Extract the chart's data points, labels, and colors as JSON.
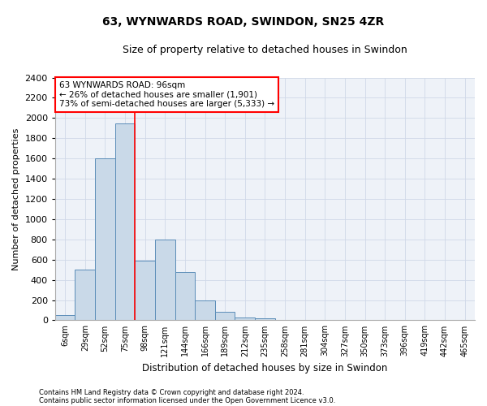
{
  "title_line1": "63, WYNWARDS ROAD, SWINDON, SN25 4ZR",
  "title_line2": "Size of property relative to detached houses in Swindon",
  "xlabel": "Distribution of detached houses by size in Swindon",
  "ylabel": "Number of detached properties",
  "footer_line1": "Contains HM Land Registry data © Crown copyright and database right 2024.",
  "footer_line2": "Contains public sector information licensed under the Open Government Licence v3.0.",
  "categories": [
    "6sqm",
    "29sqm",
    "52sqm",
    "75sqm",
    "98sqm",
    "121sqm",
    "144sqm",
    "166sqm",
    "189sqm",
    "212sqm",
    "235sqm",
    "258sqm",
    "281sqm",
    "304sqm",
    "327sqm",
    "350sqm",
    "373sqm",
    "396sqm",
    "419sqm",
    "442sqm",
    "465sqm"
  ],
  "values": [
    50,
    500,
    1600,
    1950,
    590,
    800,
    475,
    195,
    85,
    30,
    20,
    0,
    0,
    0,
    0,
    0,
    0,
    0,
    0,
    0,
    0
  ],
  "bar_color": "#c9d9e8",
  "bar_edge_color": "#5b8db8",
  "red_line_index": 3,
  "annotation_text": "63 WYNWARDS ROAD: 96sqm\n← 26% of detached houses are smaller (1,901)\n73% of semi-detached houses are larger (5,333) →",
  "annotation_box_color": "white",
  "annotation_box_edge_color": "red",
  "ylim": [
    0,
    2400
  ],
  "yticks": [
    0,
    200,
    400,
    600,
    800,
    1000,
    1200,
    1400,
    1600,
    1800,
    2000,
    2200,
    2400
  ],
  "grid_color": "#d0d8e8",
  "background_color": "#eef2f8"
}
